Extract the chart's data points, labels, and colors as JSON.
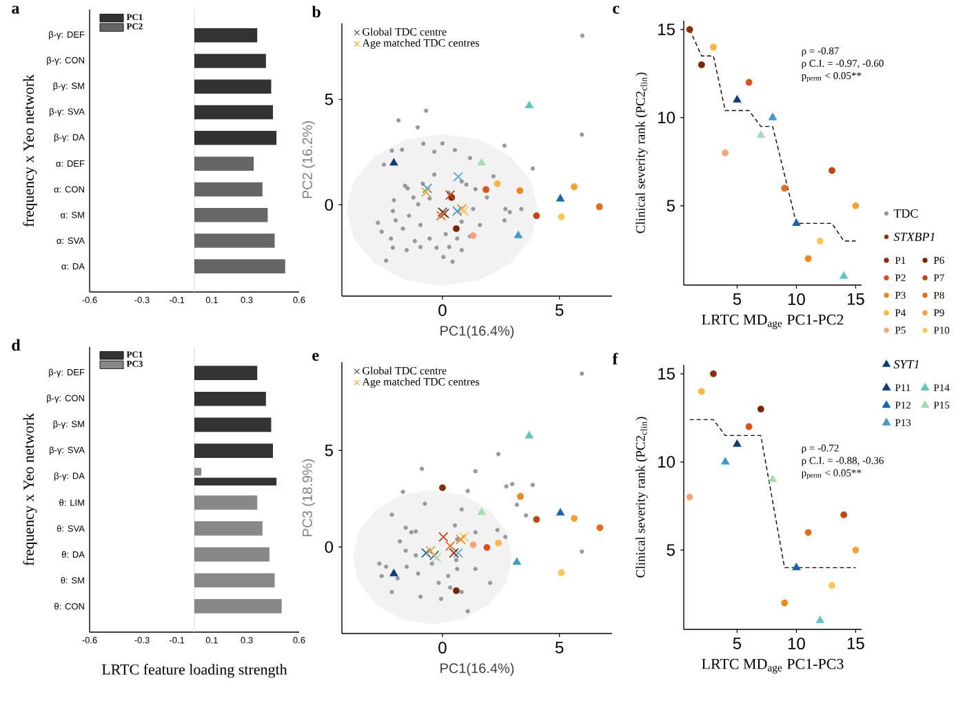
{
  "chart_data": [
    {
      "type": "bar",
      "orientation": "horizontal",
      "title": "a",
      "ylabel": "frequency x Yeo network",
      "categories": [
        "β-γ: DEF",
        "β-γ: CON",
        "β-γ: SM",
        "β-γ: SVA",
        "β-γ: DA",
        "α: DEF",
        "α: CON",
        "α: SM",
        "α: SVA",
        "α: DA"
      ],
      "xlim": [
        -0.6,
        0.6
      ],
      "xticks": [
        -0.6,
        -0.3,
        -0.1,
        0.1,
        0.3,
        0.6
      ],
      "legend": "top left",
      "ref_lines": [
        {
          "axis": "x",
          "value": 0,
          "color": "#dddddd"
        }
      ],
      "series": [
        {
          "name": "PC1",
          "color": "#333333",
          "values": [
            0.36,
            0.41,
            0.44,
            0.45,
            0.47,
            null,
            null,
            null,
            null,
            null
          ]
        },
        {
          "name": "PC2",
          "color": "#666666",
          "values": [
            null,
            null,
            null,
            null,
            null,
            0.34,
            0.39,
            0.42,
            0.46,
            0.52
          ]
        }
      ]
    },
    {
      "type": "scatter",
      "title": "b",
      "xlabel": "PC1(16.4%)",
      "ylabel": "PC2 (16.2%)",
      "xlim": [
        -4.3,
        7.25
      ],
      "ylim": [
        -4.33,
        8.6
      ],
      "xticks": [
        0,
        5
      ],
      "yticks": [
        0,
        5
      ],
      "legend": "top left",
      "series": [
        {
          "type": "area",
          "color": "#f2f2f2",
          "x": [
            4.1,
            3.79,
            2.9,
            1.57,
            0,
            -1.57,
            -2.9,
            -3.79,
            -4.1,
            -3.79,
            -2.9,
            -1.57,
            0,
            1.57,
            2.9,
            3.79
          ],
          "values": [
            -0.24,
            1.14,
            2.31,
            3.09,
            3.36,
            3.09,
            2.31,
            1.14,
            -0.24,
            -1.62,
            -2.79,
            -3.57,
            -3.84,
            -3.57,
            -2.79,
            -1.62
          ]
        },
        {
          "name": "TDC",
          "color": "#999999",
          "marker": "circle",
          "x": [
            5.98,
            5.96,
            -0.7,
            -1.88,
            -1.06,
            -2.16,
            -1.73,
            -2.5,
            -0.82,
            0,
            -0.35,
            0.53,
            1.18,
            2.65,
            2.18,
            3.86,
            -1.6,
            -1.49,
            -2.08,
            -2.12,
            -1.24,
            -1.04,
            -0.55,
            0.27,
            1.02,
            -2.76,
            -2.6,
            -2.2,
            -2.0,
            -1.69,
            -1.43,
            -0.94,
            -1.18,
            -2.41,
            -1.53,
            -0.94,
            -0.55,
            -0.25,
            0.14,
            0.29,
            0.63,
            0.82,
            1.18,
            1.6,
            0.04,
            0.43,
            0.82,
            1.31,
            1.9,
            2.69,
            2.88,
            3.37,
            2.65,
            -2.12,
            -0.35,
            -0.84,
            0.82,
            1.41
          ],
          "values": [
            8.02,
            3.33,
            4.46,
            4.0,
            3.67,
            2.57,
            2.61,
            1.91,
            2.89,
            2.91,
            2.52,
            2.59,
            2.22,
            2.8,
            1.35,
            1.72,
            0.9,
            0.78,
            0.22,
            -0.3,
            0.35,
            0.02,
            0.3,
            0.57,
            0.96,
            -0.85,
            -1.28,
            -1.6,
            -0.74,
            -1.13,
            -0.52,
            -0.96,
            -1.72,
            -2.65,
            -2.15,
            -2.0,
            -1.6,
            -2.04,
            -1.39,
            -2.0,
            -1.6,
            -2.15,
            -1.5,
            -0.96,
            -2.48,
            -2.7,
            -0.8,
            -0.2,
            0.35,
            -0.2,
            -0.35,
            -0.2,
            -0.74,
            -2.04,
            1.43,
            1.0,
            1.11,
            0.74
          ]
        },
        {
          "name": "STXBP1",
          "color": "#8b2c0c",
          "marker": "circle",
          "x": [
            0.39,
            1.86,
            3.31,
            2.35,
            1.31,
            0.59,
            4.02,
            6.71,
            5.63,
            5.08
          ],
          "values": [
            0.35,
            0.72,
            0.67,
            1.0,
            -1.46,
            -1.13,
            -0.52,
            -0.09,
            0.85,
            -0.57
          ],
          "colors": [
            "#8b2c0c",
            "#d9531a",
            "#f0851e",
            "#fbb93f",
            "#f6a57a",
            "#7a2408",
            "#c2440f",
            "#e56a1c",
            "#f7a031",
            "#fcc653"
          ]
        },
        {
          "name": "SYT1",
          "color": "#0b3d7e",
          "marker": "triangle",
          "x": [
            -2.08,
            5.04,
            3.24,
            3.71,
            1.67
          ],
          "values": [
            1.98,
            0.28,
            -1.46,
            4.7,
            1.98
          ],
          "colors": [
            "#0b3d7e",
            "#1766ad",
            "#3c9bcb",
            "#5ec6c0",
            "#a6dcb2"
          ]
        },
        {
          "name": "Global TDC centre",
          "color": "#555555",
          "marker": "cross",
          "x": [
            0
          ],
          "values": [
            -0.35
          ]
        },
        {
          "name": "Age matched TDC centres",
          "color": "#f7a031",
          "marker": "cross",
          "x": [
            -0.65,
            0.67,
            -0.7,
            0.33,
            0.82,
            0.92,
            0.08,
            -0.06,
            0.63
          ],
          "values": [
            0.78,
            1.33,
            0.6,
            0.46,
            -0.2,
            -0.3,
            -0.41,
            -0.52,
            -0.3
          ],
          "colors": [
            "#3c9bcb",
            "#5ea8d8",
            "#f7a031",
            "#c2440f",
            "#f0851e",
            "#fcc653",
            "#8b2c0c",
            "#e56a1c",
            "#3c9bcb"
          ]
        }
      ]
    },
    {
      "type": "scatter",
      "title": "c",
      "xlabel": "LRTC MD$_{age}$ PC1-PC2",
      "ylabel": "Clinical severity rank (PC2$_{clin}$)",
      "xlim": [
        0.5,
        15.5
      ],
      "ylim": [
        0.5,
        15.5
      ],
      "xticks": [
        5,
        10,
        15
      ],
      "yticks": [
        5,
        10,
        15
      ],
      "legend": "right",
      "annotations": [
        "ρ = -0.87",
        "ρ C.I. = -0.97, -0.60",
        "p$_{perm}$ < 0.05**"
      ],
      "series": [
        {
          "type": "line",
          "color": "#000000",
          "line_style": "dashed",
          "marker": "none",
          "x": [
            1,
            2,
            3,
            4,
            6,
            7,
            8,
            10,
            13,
            14,
            15
          ],
          "values": [
            15,
            13.5,
            13.5,
            10.4,
            10.4,
            9.5,
            9.5,
            4,
            4,
            3,
            3
          ]
        },
        {
          "name": "P1",
          "color": "#8b2c0c",
          "marker": "circle",
          "x": [
            1
          ],
          "values": [
            15
          ]
        },
        {
          "name": "P2",
          "color": "#d9531a",
          "marker": "circle",
          "x": [
            6
          ],
          "values": [
            12
          ]
        },
        {
          "name": "P3",
          "color": "#f0851e",
          "marker": "circle",
          "x": [
            11
          ],
          "values": [
            2
          ]
        },
        {
          "name": "P4",
          "color": "#fbb93f",
          "marker": "circle",
          "x": [
            3
          ],
          "values": [
            14
          ]
        },
        {
          "name": "P5",
          "color": "#f6a57a",
          "marker": "circle",
          "x": [
            4
          ],
          "values": [
            8
          ]
        },
        {
          "name": "P6",
          "color": "#7a2408",
          "marker": "circle",
          "x": [
            2
          ],
          "values": [
            13
          ]
        },
        {
          "name": "P7",
          "color": "#c2440f",
          "marker": "circle",
          "x": [
            13
          ],
          "values": [
            7
          ]
        },
        {
          "name": "P8",
          "color": "#e56a1c",
          "marker": "circle",
          "x": [
            9
          ],
          "values": [
            6
          ]
        },
        {
          "name": "P9",
          "color": "#f7a031",
          "marker": "circle",
          "x": [
            15
          ],
          "values": [
            5
          ]
        },
        {
          "name": "P10",
          "color": "#fcc653",
          "marker": "circle",
          "x": [
            12
          ],
          "values": [
            3
          ]
        },
        {
          "name": "P11",
          "color": "#0b3d7e",
          "marker": "triangle",
          "x": [
            5
          ],
          "values": [
            11
          ]
        },
        {
          "name": "P12",
          "color": "#1766ad",
          "marker": "triangle",
          "x": [
            10
          ],
          "values": [
            4
          ]
        },
        {
          "name": "P13",
          "color": "#3c9bcb",
          "marker": "triangle",
          "x": [
            8
          ],
          "values": [
            10
          ]
        },
        {
          "name": "P14",
          "color": "#5ec6c0",
          "marker": "triangle",
          "x": [
            14
          ],
          "values": [
            1
          ]
        },
        {
          "name": "P15",
          "color": "#a6dcb2",
          "marker": "triangle",
          "x": [
            7
          ],
          "values": [
            9
          ]
        }
      ]
    },
    {
      "type": "bar",
      "orientation": "horizontal",
      "title": "d",
      "xlabel": "LRTC feature loading strength",
      "ylabel": "frequency x Yeo network",
      "categories": [
        "β-γ: DEF",
        "β-γ: CON",
        "β-γ: SM",
        "β-γ: SVA",
        "β-γ: DA",
        "θ: LIM",
        "θ: SVA",
        "θ: DA",
        "θ: SM",
        "θ: CON"
      ],
      "xlim": [
        -0.6,
        0.6
      ],
      "xticks": [
        -0.6,
        -0.3,
        -0.1,
        0.1,
        0.3,
        0.6
      ],
      "legend": "top left",
      "ref_lines": [
        {
          "axis": "x",
          "value": 0,
          "color": "#dddddd"
        }
      ],
      "series": [
        {
          "name": "PC1",
          "color": "#333333",
          "values": [
            0.36,
            0.41,
            0.44,
            0.45,
            0.47,
            null,
            null,
            null,
            null,
            null
          ]
        },
        {
          "name": "PC3",
          "color": "#888888",
          "values": [
            null,
            null,
            null,
            null,
            0.04,
            0.36,
            0.39,
            0.43,
            0.46,
            0.5
          ]
        }
      ]
    },
    {
      "type": "scatter",
      "title": "e",
      "xlabel": "PC1(16.4%)",
      "ylabel": "PC3 (18.9%)",
      "xlim": [
        -4.3,
        7.25
      ],
      "ylim": [
        -4.48,
        9.57
      ],
      "xticks": [
        0,
        5
      ],
      "yticks": [
        0,
        5
      ],
      "legend": "top left",
      "series": [
        {
          "type": "area",
          "color": "#f2f2f2",
          "x": [
            2.98,
            2.72,
            1.98,
            0.87,
            -0.43,
            -1.73,
            -2.84,
            -3.58,
            -3.84,
            -3.58,
            -2.84,
            -1.73,
            -0.43,
            0.87,
            1.98,
            2.72
          ],
          "values": [
            -0.52,
            0.81,
            1.94,
            2.7,
            2.96,
            2.7,
            1.94,
            0.81,
            -0.52,
            -1.85,
            -2.98,
            -3.74,
            -4.0,
            -3.74,
            -2.98,
            -1.85
          ]
        },
        {
          "color": "#999999",
          "marker": "circle",
          "x": [
            5.96,
            2.39,
            -0.88,
            1.41,
            -1.69,
            -0.75,
            1.08,
            2.98,
            2.73,
            3.86,
            3.18,
            3.57,
            -2.16,
            -1.57,
            -1.14,
            -1.33,
            -1.82,
            -1.57,
            -1.14,
            0.82,
            0.53,
            0.63,
            1.41,
            2.35,
            2.69,
            5.96,
            -2.7,
            -2.6,
            -2.41,
            -2.16,
            -1.92,
            -1.53,
            -1.04,
            -0.94,
            -0.45,
            -0.16,
            0.24,
            0.33,
            0.63,
            0.82,
            1.08,
            1.41,
            2.04,
            -0.06,
            0.59
          ],
          "values": [
            8.98,
            4.81,
            4.05,
            3.93,
            2.86,
            2.24,
            2.9,
            3.26,
            3.14,
            3.21,
            2.19,
            1.64,
            1.67,
            1.0,
            0.81,
            0.76,
            0.29,
            -0.19,
            -0.43,
            1.95,
            1.12,
            0.4,
            0.76,
            0.88,
            0.52,
            -0.24,
            -0.86,
            -1.5,
            -1.02,
            -2.33,
            -1.62,
            -1.02,
            -1.38,
            -2.57,
            -0.86,
            -1.86,
            -1.5,
            -2.1,
            -1.14,
            -2.33,
            -3.33,
            -1.14,
            -1.86,
            -2.69,
            -0.67
          ]
        },
        {
          "marker": "circle",
          "x": [
            0,
            1.9,
            3.33,
            2.39,
            1.31,
            0.59,
            4.02,
            6.73,
            5.63,
            5.08
          ],
          "values": [
            3.07,
            -0.02,
            2.62,
            0.21,
            0.12,
            -2.26,
            1.43,
            1.0,
            1.48,
            -1.33
          ],
          "colors": [
            "#8b2c0c",
            "#d9531a",
            "#f0851e",
            "#fbb93f",
            "#f6a57a",
            "#7a2408",
            "#c2440f",
            "#e56a1c",
            "#f7a031",
            "#fcc653"
          ]
        },
        {
          "marker": "triangle",
          "x": [
            -2.08,
            5.04,
            3.18,
            3.71,
            1.67
          ],
          "values": [
            -1.38,
            1.76,
            -0.79,
            5.76,
            1.79
          ],
          "colors": [
            "#0b3d7e",
            "#1766ad",
            "#3c9bcb",
            "#5ec6c0",
            "#a6dcb2"
          ]
        },
        {
          "name": "Global TDC centre",
          "color": "#555555",
          "marker": "cross",
          "x": [
            -0.35
          ],
          "values": [
            -0.43
          ]
        },
        {
          "name": "Age matched TDC centres",
          "color": "#f7a031",
          "marker": "cross",
          "x": [
            -0.7,
            -0.51,
            0.04,
            0.33,
            0.92,
            0.67,
            0.78,
            0.49,
            -0.25
          ],
          "values": [
            -0.31,
            -0.19,
            0.52,
            0.05,
            0.52,
            -0.31,
            0.4,
            -0.31,
            -0.55
          ],
          "colors": [
            "#1766ad",
            "#f7a031",
            "#c2440f",
            "#e56a1c",
            "#fcc653",
            "#5ea8d8",
            "#f0851e",
            "#8b2c0c",
            "#a6dcb2"
          ]
        }
      ]
    },
    {
      "type": "scatter",
      "title": "f",
      "xlabel": "LRTC MD$_{age}$ PC1-PC3",
      "ylabel": "Clinical severity rank (PC2$_{clin}$)",
      "xlim": [
        0.5,
        15.5
      ],
      "ylim": [
        0.5,
        15.5
      ],
      "xticks": [
        5,
        10,
        15
      ],
      "yticks": [
        5,
        10,
        15
      ],
      "annotations": [
        "ρ = -0.72",
        "ρ C.I. = -0.88, -0.36",
        "p$_{perm}$ < 0.05**"
      ],
      "series": [
        {
          "type": "line",
          "color": "#000000",
          "line_style": "dashed",
          "marker": "none",
          "x": [
            1,
            3,
            4,
            7,
            9,
            15
          ],
          "values": [
            12.4,
            12.4,
            11.5,
            11.5,
            4,
            4
          ]
        },
        {
          "marker": "circle",
          "x": [
            3,
            6,
            9,
            2,
            1,
            7,
            14,
            11,
            15,
            13
          ],
          "values": [
            15,
            12,
            2,
            14,
            8,
            13,
            7,
            6,
            5,
            3
          ],
          "colors": [
            "#8b2c0c",
            "#d9531a",
            "#f0851e",
            "#fbb93f",
            "#f6a57a",
            "#7a2408",
            "#c2440f",
            "#e56a1c",
            "#f7a031",
            "#fcc653"
          ]
        },
        {
          "marker": "triangle",
          "x": [
            5,
            10,
            4,
            12,
            8
          ],
          "values": [
            11,
            4,
            10,
            1,
            9
          ],
          "colors": [
            "#0b3d7e",
            "#1766ad",
            "#3c9bcb",
            "#5ec6c0",
            "#a6dcb2"
          ]
        }
      ]
    }
  ]
}
